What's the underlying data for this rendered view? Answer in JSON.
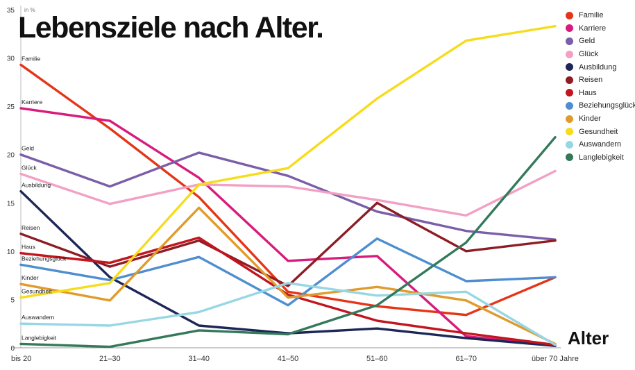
{
  "title": "Lebensziele nach Alter.",
  "y_axis": {
    "unit_label": "in %",
    "ticks": [
      0,
      5,
      10,
      15,
      20,
      25,
      30,
      35
    ],
    "max": 35
  },
  "x_axis": {
    "title": "Alter",
    "categories": [
      "bis 20",
      "21–30",
      "31–40",
      "41–50",
      "51–60",
      "61–70",
      "über 70 Jahre"
    ]
  },
  "chart_data": {
    "type": "line",
    "title": "Lebensziele nach Alter.",
    "xlabel": "Alter",
    "ylabel": "in %",
    "ylim": [
      0,
      35
    ],
    "grid": false,
    "legend_position": "top-right",
    "categories": [
      "bis 20",
      "21–30",
      "31–40",
      "41–50",
      "51–60",
      "61–70",
      "über 70 Jahre"
    ],
    "series": [
      {
        "name": "Familie",
        "color": "#e53517",
        "values": [
          29.3,
          22.7,
          15.6,
          5.8,
          4.3,
          3.4,
          7.3
        ]
      },
      {
        "name": "Karriere",
        "color": "#d81b7c",
        "values": [
          24.8,
          23.5,
          17.6,
          9.0,
          9.5,
          1.2,
          0.2
        ]
      },
      {
        "name": "Geld",
        "color": "#7a5ea8",
        "values": [
          20.0,
          16.7,
          20.2,
          17.8,
          14.1,
          12.1,
          11.2
        ]
      },
      {
        "name": "Glück",
        "color": "#f2a0c4",
        "values": [
          18.0,
          14.9,
          16.9,
          16.7,
          15.3,
          13.7,
          18.3
        ]
      },
      {
        "name": "Ausbildung",
        "color": "#1c2757",
        "values": [
          16.2,
          7.3,
          2.3,
          1.5,
          2.0,
          1.0,
          0.2
        ]
      },
      {
        "name": "Reisen",
        "color": "#8e1c24",
        "values": [
          11.8,
          8.4,
          11.1,
          6.4,
          15.0,
          10.0,
          11.1
        ]
      },
      {
        "name": "Haus",
        "color": "#c2151e",
        "values": [
          9.8,
          8.8,
          11.4,
          5.5,
          2.8,
          1.5,
          0.3
        ]
      },
      {
        "name": "Beziehungsglück",
        "color": "#4e8ed0",
        "values": [
          8.6,
          7.0,
          9.4,
          4.4,
          11.3,
          6.9,
          7.3
        ]
      },
      {
        "name": "Kinder",
        "color": "#e09b2c",
        "values": [
          6.6,
          4.9,
          14.5,
          5.2,
          6.3,
          4.9,
          0.4
        ]
      },
      {
        "name": "Gesundheit",
        "color": "#f6dc1b",
        "values": [
          5.2,
          6.7,
          16.9,
          18.6,
          25.8,
          31.8,
          33.3
        ]
      },
      {
        "name": "Auswandern",
        "color": "#97d7e3",
        "values": [
          2.5,
          2.3,
          3.7,
          6.7,
          5.4,
          5.8,
          0.3
        ]
      },
      {
        "name": "Langlebigkeit",
        "color": "#33795a",
        "values": [
          0.4,
          0.1,
          1.8,
          1.4,
          4.4,
          10.9,
          21.8
        ]
      }
    ]
  }
}
